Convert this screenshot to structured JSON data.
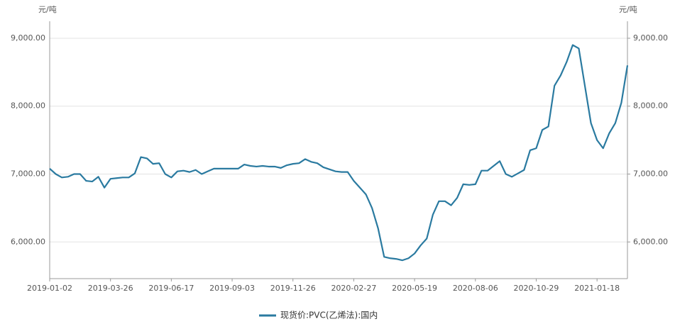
{
  "chart_data": {
    "type": "line",
    "y_unit": "元/吨",
    "y2_unit": "元/吨",
    "categories": [
      "2019-01-02",
      null,
      null,
      null,
      null,
      null,
      null,
      null,
      null,
      null,
      "2019-03-26",
      null,
      null,
      null,
      null,
      null,
      null,
      null,
      null,
      null,
      "2019-06-17",
      null,
      null,
      null,
      null,
      null,
      null,
      null,
      null,
      null,
      "2019-09-03",
      null,
      null,
      null,
      null,
      null,
      null,
      null,
      null,
      null,
      "2019-11-26",
      null,
      null,
      null,
      null,
      null,
      null,
      null,
      null,
      null,
      "2020-02-27",
      null,
      null,
      null,
      null,
      null,
      null,
      null,
      null,
      null,
      "2020-05-19",
      null,
      null,
      null,
      null,
      null,
      null,
      null,
      null,
      null,
      "2020-08-06",
      null,
      null,
      null,
      null,
      null,
      null,
      null,
      null,
      null,
      "2020-10-29",
      null,
      null,
      null,
      null,
      null,
      null,
      null,
      null,
      null,
      "2021-01-18",
      null,
      null,
      null,
      null,
      null
    ],
    "series": [
      {
        "name": "现货价:PVC(乙烯法):国内",
        "color": "#2a7aa0",
        "values": [
          7080,
          7000,
          6950,
          6960,
          7000,
          7000,
          6900,
          6890,
          6960,
          6800,
          6930,
          6940,
          6950,
          6950,
          7010,
          7250,
          7230,
          7150,
          7160,
          7000,
          6950,
          7040,
          7050,
          7030,
          7060,
          7000,
          7040,
          7080,
          7080,
          7080,
          7080,
          7080,
          7140,
          7120,
          7110,
          7120,
          7110,
          7110,
          7090,
          7130,
          7150,
          7160,
          7220,
          7180,
          7160,
          7100,
          7070,
          7040,
          7030,
          7030,
          6900,
          6800,
          6700,
          6500,
          6200,
          5780,
          5760,
          5750,
          5730,
          5760,
          5830,
          5950,
          6050,
          6400,
          6600,
          6600,
          6540,
          6650,
          6850,
          6840,
          6850,
          7050,
          7050,
          7120,
          7190,
          7000,
          6960,
          7010,
          7060,
          7350,
          7380,
          7650,
          7700,
          8300,
          8450,
          8650,
          8900,
          8850,
          8300,
          7750,
          7500,
          7380,
          7600,
          7750,
          8050,
          8600
        ]
      }
    ],
    "ylim": [
      5460,
      9250
    ],
    "yticks": [
      {
        "value": 6000,
        "label": "6,000.00"
      },
      {
        "value": 7000,
        "label": "7,000.00"
      },
      {
        "value": 8000,
        "label": "8,000.00"
      },
      {
        "value": 9000,
        "label": "9,000.00"
      }
    ],
    "y2lim": [
      5460,
      9250
    ],
    "y2ticks": [
      {
        "value": 6000,
        "label": "6,000.00"
      },
      {
        "value": 7000,
        "label": "7,000.00"
      },
      {
        "value": 8000,
        "label": "8,000.00"
      },
      {
        "value": 9000,
        "label": "9,000.00"
      }
    ],
    "grid": true
  }
}
